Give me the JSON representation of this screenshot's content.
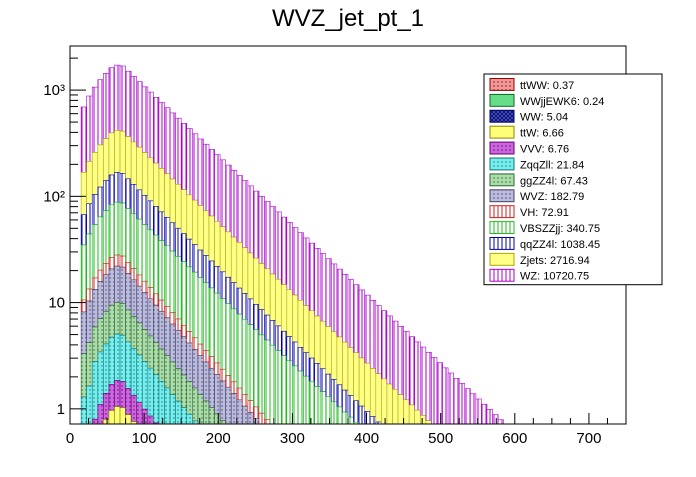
{
  "chart_data": {
    "type": "bar",
    "stacked": true,
    "log_y": true,
    "title": "WVZ_jet_pt_1",
    "xlabel": "",
    "ylabel": "",
    "xlim": [
      0,
      750
    ],
    "ylim": [
      0.72,
      2600
    ],
    "bin_width": 7.5,
    "x_ticks": [
      0,
      100,
      200,
      300,
      400,
      500,
      600,
      700
    ],
    "x_tick_labels": [
      "0",
      "100",
      "200",
      "300",
      "400",
      "500",
      "600",
      "700"
    ],
    "y_ticks": [
      1,
      10,
      100,
      1000
    ],
    "y_tick_labels": [
      "1",
      "10",
      "10²",
      "10³"
    ],
    "legend_position": "top-right",
    "series": [
      {
        "name": "ttWW",
        "label": "ttWW: 0.37",
        "color": "#ee9999",
        "edge": "#990000",
        "pattern": "dots",
        "peak": 0.03,
        "xstart": 30,
        "slope": 0.55
      },
      {
        "name": "WWjjEWK6",
        "label": "WWjjEWK6: 0.24",
        "color": "#66dd88",
        "edge": "#116622",
        "pattern": "solid",
        "peak": 0.02,
        "xstart": 30,
        "slope": 0.55
      },
      {
        "name": "WW",
        "label": "WW: 5.04",
        "color": "#4455bb",
        "edge": "#000066",
        "pattern": "cross",
        "peak": 0.3,
        "xstart": 30,
        "slope": 0.6
      },
      {
        "name": "ttW",
        "label": "ttW: 6.66",
        "color": "#ffff77",
        "edge": "#888800",
        "pattern": "solid",
        "peak": 0.7,
        "xstart": 30,
        "slope": 0.55
      },
      {
        "name": "VVV",
        "label": "VVV: 6.76",
        "color": "#cc66dd",
        "edge": "#660077",
        "pattern": "dots",
        "peak": 0.8,
        "xstart": 30,
        "slope": 0.55
      },
      {
        "name": "ZqqZll",
        "label": "ZqqZll: 21.84",
        "color": "#77eeee",
        "edge": "#117777",
        "pattern": "dots",
        "peak": 3.2,
        "xstart": 15,
        "slope": 0.52
      },
      {
        "name": "ggZZ4l",
        "label": "ggZZ4l: 67.43",
        "color": "#aaddaa",
        "edge": "#336633",
        "pattern": "dots",
        "peak": 5.0,
        "xstart": 15,
        "slope": 0.52
      },
      {
        "name": "WVZ",
        "label": "WVZ: 182.79",
        "color": "#bbbbdd",
        "edge": "#444466",
        "pattern": "dots",
        "peak": 12.0,
        "xstart": 15,
        "slope": 0.5
      },
      {
        "name": "VH",
        "label": "VH: 72.91",
        "color": "#ffffff",
        "edge": "#cc2222",
        "pattern": "vlines",
        "peak": 6.0,
        "xstart": 15,
        "slope": 0.5
      },
      {
        "name": "VBSZZjj",
        "label": "VBSZZjj: 340.75",
        "color": "#ffffff",
        "edge": "#22bb22",
        "pattern": "vlines",
        "peak": 60.0,
        "xstart": 15,
        "slope": 0.4
      },
      {
        "name": "qqZZ4l",
        "label": "qqZZ4l: 1038.45",
        "color": "#ffffff",
        "edge": "#0000aa",
        "pattern": "vlines",
        "peak": 80.0,
        "xstart": 15,
        "slope": 0.46
      },
      {
        "name": "Zjets",
        "label": "Zjets: 2716.94",
        "color": "#ffff88",
        "edge": "#aaaa00",
        "pattern": "solid",
        "peak": 250.0,
        "xstart": 15,
        "slope": 0.42
      },
      {
        "name": "WZ",
        "label": "WZ: 10720.75",
        "color": "#ffffff",
        "edge": "#aa00cc",
        "pattern": "vlines",
        "peak": 1300.0,
        "xstart": 15,
        "slope": 0.42
      }
    ]
  }
}
